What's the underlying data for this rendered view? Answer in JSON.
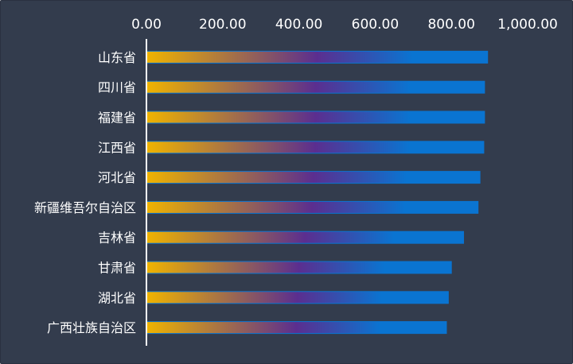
{
  "chart_data": {
    "type": "bar",
    "orientation": "horizontal",
    "categories": [
      "山东省",
      "四川省",
      "福建省",
      "江西省",
      "河北省",
      "新疆维吾尔自治区",
      "吉林省",
      "甘肃省",
      "湖北省",
      "广西壮族自治区"
    ],
    "values": [
      895,
      887,
      887,
      885,
      875,
      870,
      832,
      800,
      792,
      787
    ],
    "xlim": [
      0,
      1000
    ],
    "xticks": [
      "0.00",
      "200.00",
      "400.00",
      "600.00",
      "800.00",
      "1,000.00"
    ],
    "xaxis_position": "top",
    "grid": false,
    "legend": "none",
    "title": "",
    "xlabel": "",
    "ylabel": "",
    "colors": {
      "background": "#333c4d",
      "bar_gradient": [
        "#f0b400",
        "#5b2e8f",
        "#0a74d1"
      ],
      "bar_solid": "#0a74d1",
      "text": "#ffffff",
      "axis": "#ffffff"
    }
  }
}
